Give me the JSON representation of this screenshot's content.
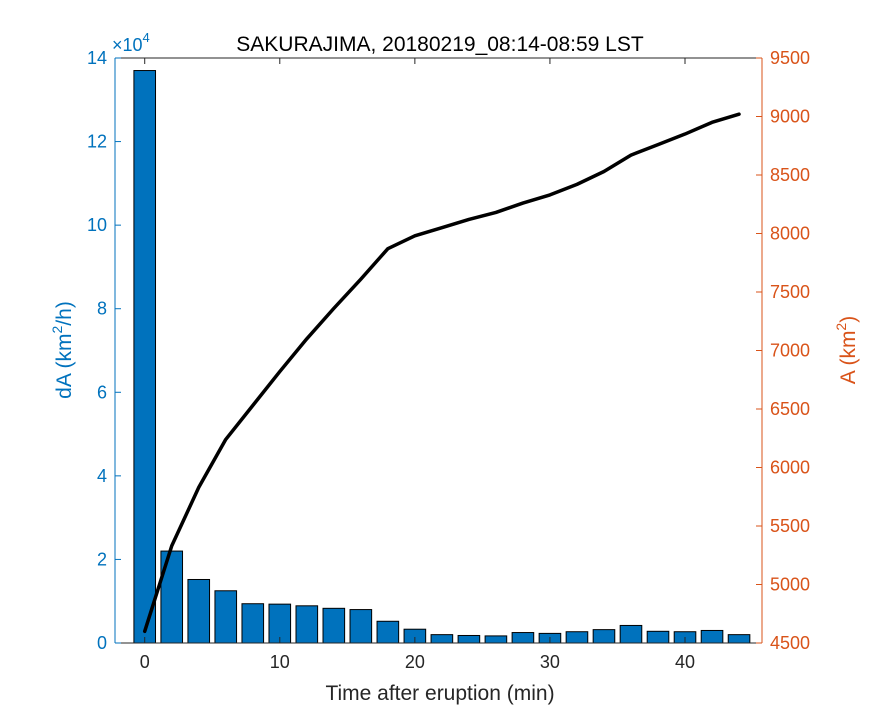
{
  "chart_data": {
    "type": "bar",
    "title": "SAKURAJIMA, 20180219_08:14-08:59 LST",
    "xlabel": "Time after eruption (min)",
    "xlim": [
      -2.2,
      45.7
    ],
    "x_ticks": [
      0,
      10,
      20,
      30,
      40
    ],
    "left_axis": {
      "label_prefix": "dA (km",
      "label_sup": "2",
      "label_suffix": "/h)",
      "exponent_base": "×10",
      "exponent_power": "4",
      "ylim": [
        0,
        140000
      ],
      "ticks": [
        0,
        20000,
        40000,
        60000,
        80000,
        100000,
        120000,
        140000
      ],
      "tick_labels": [
        "0",
        "2",
        "4",
        "6",
        "8",
        "10",
        "12",
        "14"
      ],
      "color": "#0072BD"
    },
    "right_axis": {
      "label_prefix": "A (km",
      "label_sup": "2",
      "label_suffix": ")",
      "ylim": [
        4500,
        9500
      ],
      "ticks": [
        4500,
        5000,
        5500,
        6000,
        6500,
        7000,
        7500,
        8000,
        8500,
        9000,
        9500
      ],
      "color": "#D95319"
    },
    "series": [
      {
        "type": "bar",
        "axis": "left",
        "color": "#0072BD",
        "x": [
          0,
          2,
          4,
          6,
          8,
          10,
          12,
          14,
          16,
          18,
          20,
          22,
          24,
          26,
          28,
          30,
          32,
          34,
          36,
          38,
          40,
          42,
          44
        ],
        "values": [
          137000,
          22000,
          15200,
          12500,
          9400,
          9300,
          8900,
          8300,
          8000,
          5200,
          3300,
          2000,
          1800,
          1700,
          2500,
          2300,
          2700,
          3200,
          4200,
          2800,
          2700,
          3000,
          2000
        ]
      },
      {
        "type": "line",
        "axis": "right",
        "color": "#000000",
        "x": [
          0,
          2,
          4,
          6,
          8,
          10,
          12,
          14,
          16,
          18,
          20,
          22,
          24,
          26,
          28,
          30,
          32,
          34,
          36,
          38,
          40,
          42,
          44
        ],
        "values": [
          4600,
          5330,
          5830,
          6240,
          6530,
          6820,
          7100,
          7360,
          7610,
          7870,
          7980,
          8050,
          8120,
          8180,
          8260,
          8330,
          8420,
          8530,
          8670,
          8760,
          8850,
          8950,
          9020
        ]
      }
    ],
    "grid": false,
    "legend": "none"
  }
}
